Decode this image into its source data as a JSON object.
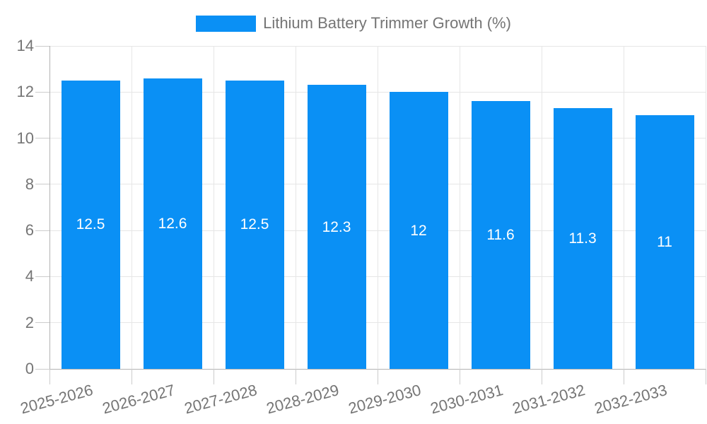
{
  "legend": {
    "label": "Lithium Battery Trimmer Growth (%)"
  },
  "chart_data": {
    "type": "bar",
    "title": "",
    "xlabel": "",
    "ylabel": "",
    "categories": [
      "2025-2026",
      "2026-2027",
      "2027-2028",
      "2028-2029",
      "2029-2030",
      "2030-2031",
      "2031-2032",
      "2032-2033"
    ],
    "series": [
      {
        "name": "Lithium Battery Trimmer Growth (%)",
        "values": [
          12.5,
          12.6,
          12.5,
          12.3,
          12,
          11.6,
          11.3,
          11
        ],
        "value_labels": [
          "12.5",
          "12.6",
          "12.5",
          "12.3",
          "12",
          "11.6",
          "11.3",
          "11"
        ]
      }
    ],
    "ylim": [
      0,
      14
    ],
    "yticks": [
      0,
      2,
      4,
      6,
      8,
      10,
      12,
      14
    ],
    "grid": true,
    "legend_position": "top"
  },
  "colors": {
    "bar": "#0a90f5",
    "grid": "#e6e6e6",
    "axis": "#b3b3b3",
    "tick": "#cccccc",
    "axis_text": "#757575",
    "bar_label": "#ffffff",
    "background": "#ffffff"
  }
}
